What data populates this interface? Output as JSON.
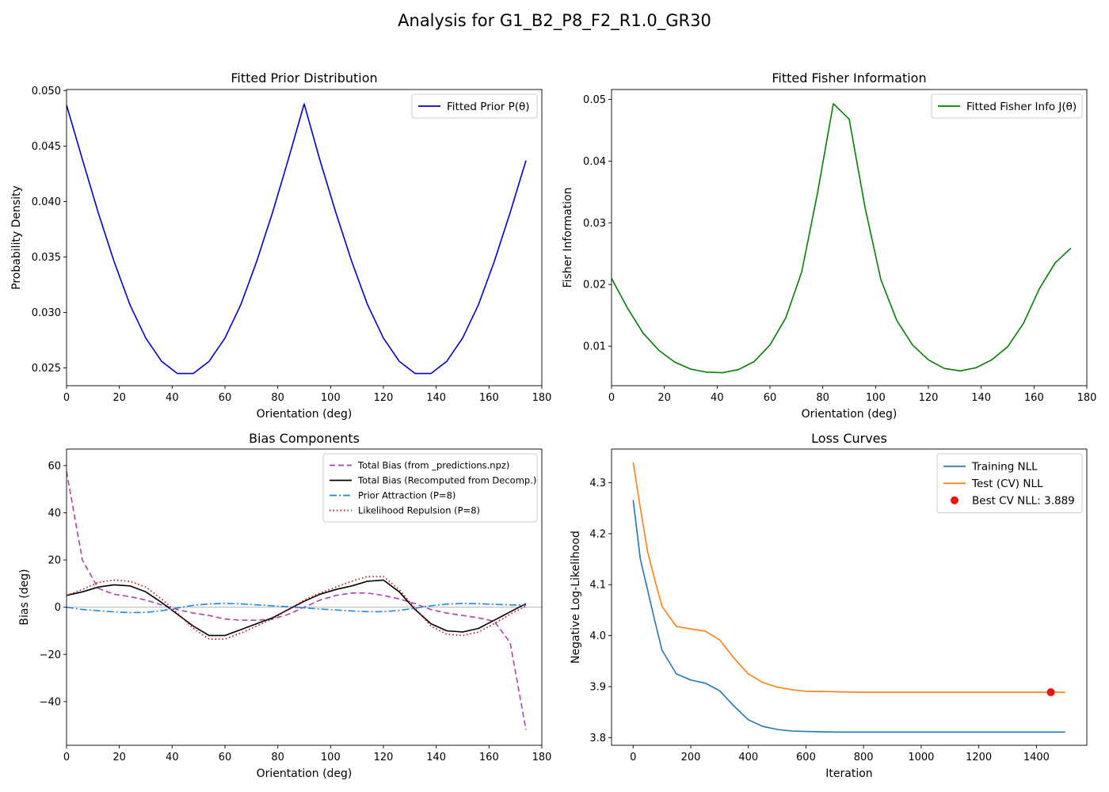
{
  "suptitle": "Analysis for G1_B2_P8_F2_R1.0_GR30",
  "chart_data": [
    {
      "type": "line",
      "title": "Fitted Prior Distribution",
      "xlabel": "Orientation (deg)",
      "ylabel": "Probability Density",
      "xlim": [
        0,
        180
      ],
      "ylim": [
        0.0234,
        0.0501
      ],
      "xticks": [
        0,
        20,
        40,
        60,
        80,
        100,
        120,
        140,
        160,
        180
      ],
      "yticks": [
        0.025,
        0.03,
        0.035,
        0.04,
        0.045,
        0.05
      ],
      "ytick_labels": [
        "0.025",
        "0.030",
        "0.035",
        "0.040",
        "0.045",
        "0.050"
      ],
      "legend": "upper right",
      "grid": false,
      "series": [
        {
          "name": "Fitted Prior P(θ)",
          "color": "#0000cc",
          "style": "solid",
          "x": [
            0,
            6,
            12,
            18,
            24,
            30,
            36,
            42,
            48,
            54,
            60,
            66,
            72,
            78,
            84,
            90,
            96,
            102,
            108,
            114,
            120,
            126,
            132,
            138,
            144,
            150,
            156,
            162,
            168,
            174
          ],
          "y": [
            0.0487,
            0.0438,
            0.039,
            0.0346,
            0.0307,
            0.0277,
            0.0256,
            0.0245,
            0.0245,
            0.0256,
            0.0277,
            0.0307,
            0.0346,
            0.039,
            0.0438,
            0.0488,
            0.0437,
            0.039,
            0.0346,
            0.0307,
            0.0277,
            0.0256,
            0.0245,
            0.0245,
            0.0256,
            0.0277,
            0.0307,
            0.0346,
            0.039,
            0.0437
          ]
        }
      ]
    },
    {
      "type": "line",
      "title": "Fitted Fisher Information",
      "xlabel": "Orientation (deg)",
      "ylabel": "Fisher Information",
      "xlim": [
        0,
        180
      ],
      "ylim": [
        0.0036,
        0.0516
      ],
      "xticks": [
        0,
        20,
        40,
        60,
        80,
        100,
        120,
        140,
        160,
        180
      ],
      "yticks": [
        0.01,
        0.02,
        0.03,
        0.04,
        0.05
      ],
      "ytick_labels": [
        "0.01",
        "0.02",
        "0.03",
        "0.04",
        "0.05"
      ],
      "legend": "upper right",
      "grid": false,
      "series": [
        {
          "name": "Fitted Fisher Info J(θ)",
          "color": "#008000",
          "style": "solid",
          "x": [
            0,
            6,
            12,
            18,
            24,
            30,
            36,
            42,
            48,
            54,
            60,
            66,
            72,
            78,
            84,
            90,
            96,
            102,
            108,
            114,
            120,
            126,
            132,
            138,
            144,
            150,
            156,
            162,
            168,
            174
          ],
          "y": [
            0.021,
            0.0162,
            0.0121,
            0.0093,
            0.0074,
            0.0063,
            0.0058,
            0.0057,
            0.0062,
            0.0075,
            0.0102,
            0.0146,
            0.022,
            0.0348,
            0.0493,
            0.0468,
            0.0325,
            0.0208,
            0.0142,
            0.0102,
            0.0078,
            0.0064,
            0.006,
            0.0065,
            0.0078,
            0.0099,
            0.0137,
            0.0193,
            0.0235,
            0.0259
          ]
        }
      ]
    },
    {
      "type": "line",
      "title": "Bias Components",
      "xlabel": "Orientation (deg)",
      "ylabel": "Bias (deg)",
      "xlim": [
        0,
        180
      ],
      "ylim": [
        -58.5,
        67
      ],
      "xticks": [
        0,
        20,
        40,
        60,
        80,
        100,
        120,
        140,
        160,
        180
      ],
      "yticks": [
        -40,
        -20,
        0,
        20,
        40,
        60
      ],
      "ytick_labels": [
        "−40",
        "−20",
        "0",
        "20",
        "40",
        "60"
      ],
      "zero_line": true,
      "legend": "upper right",
      "grid": false,
      "series": [
        {
          "name": "Total Bias (from _predictions.npz)",
          "color": "#aa44aa",
          "style": "dashed",
          "x": [
            0,
            6,
            12,
            18,
            24,
            30,
            36,
            42,
            48,
            54,
            60,
            66,
            72,
            78,
            84,
            90,
            96,
            102,
            108,
            114,
            120,
            126,
            132,
            138,
            144,
            150,
            156,
            162,
            168,
            174
          ],
          "y": [
            57.5,
            20,
            8,
            5.5,
            4.5,
            3,
            1,
            -1,
            -2.5,
            -3.5,
            -5,
            -5.5,
            -5.5,
            -5,
            -3,
            0,
            3,
            5,
            6,
            6,
            5,
            3.5,
            1.5,
            -1,
            -2.5,
            -3.5,
            -4.5,
            -6,
            -15,
            -52
          ]
        },
        {
          "name": "Total Bias (Recomputed from Decomp.)",
          "color": "#000000",
          "style": "solid",
          "x": [
            0,
            6,
            12,
            18,
            24,
            30,
            36,
            42,
            48,
            54,
            60,
            66,
            72,
            78,
            84,
            90,
            96,
            102,
            108,
            114,
            120,
            126,
            132,
            138,
            144,
            150,
            156,
            162,
            168,
            174
          ],
          "y": [
            5,
            6.5,
            8.5,
            9.5,
            9,
            6.5,
            2,
            -3,
            -8,
            -12,
            -12,
            -9.5,
            -7,
            -4.5,
            -1,
            2.5,
            5.5,
            7.5,
            9,
            11,
            11.5,
            6.5,
            -1,
            -7,
            -10,
            -10.5,
            -9,
            -5.5,
            -2,
            1.5
          ]
        },
        {
          "name": "Prior Attraction (P=8)",
          "color": "#1e88e5",
          "style": "dashdot",
          "x": [
            0,
            6,
            12,
            18,
            24,
            30,
            36,
            42,
            48,
            54,
            60,
            66,
            72,
            78,
            84,
            90,
            96,
            102,
            108,
            114,
            120,
            126,
            132,
            138,
            144,
            150,
            156,
            162,
            168,
            174
          ],
          "y": [
            0,
            -1,
            -1.5,
            -2,
            -2.3,
            -2.2,
            -1.5,
            -0.3,
            0.8,
            1.4,
            1.6,
            1.4,
            1,
            0.6,
            0.2,
            -0.3,
            -0.8,
            -1.2,
            -1.6,
            -1.9,
            -1.9,
            -1.4,
            -0.4,
            0.6,
            1.3,
            1.6,
            1.5,
            1.2,
            1,
            0.8
          ]
        },
        {
          "name": "Likelihood Repulsion (P=8)",
          "color": "#cc0000",
          "style": "dotted",
          "x": [
            0,
            6,
            12,
            18,
            24,
            30,
            36,
            42,
            48,
            54,
            60,
            66,
            72,
            78,
            84,
            90,
            96,
            102,
            108,
            114,
            120,
            126,
            132,
            138,
            144,
            150,
            156,
            162,
            168,
            174
          ],
          "y": [
            5,
            7.5,
            10.5,
            11.5,
            11,
            8.5,
            3.5,
            -2.5,
            -9,
            -13.5,
            -13.5,
            -11,
            -8,
            -5,
            -1,
            3,
            6,
            8.5,
            11,
            13,
            13,
            7.5,
            -0.5,
            -8,
            -11.5,
            -12,
            -10.5,
            -7,
            -3,
            0.5
          ]
        }
      ]
    },
    {
      "type": "line",
      "title": "Loss Curves",
      "xlabel": "Iteration",
      "ylabel": "Negative Log-Likelihood",
      "xlim": [
        -75,
        1575
      ],
      "ylim": [
        3.785,
        4.366
      ],
      "xticks": [
        0,
        200,
        400,
        600,
        800,
        1000,
        1200,
        1400
      ],
      "yticks": [
        3.8,
        3.9,
        4.0,
        4.1,
        4.2,
        4.3
      ],
      "ytick_labels": [
        "3.8",
        "3.9",
        "4.0",
        "4.1",
        "4.2",
        "4.3"
      ],
      "legend": "upper right",
      "grid": false,
      "series": [
        {
          "name": "Training NLL",
          "color": "#1f77b4",
          "style": "solid",
          "x": [
            0,
            25,
            50,
            75,
            100,
            150,
            200,
            250,
            300,
            350,
            400,
            450,
            500,
            550,
            600,
            700,
            800,
            900,
            1000,
            1100,
            1200,
            1300,
            1400,
            1500
          ],
          "y": [
            4.266,
            4.15,
            4.09,
            4.03,
            3.972,
            3.925,
            3.913,
            3.907,
            3.892,
            3.862,
            3.835,
            3.822,
            3.816,
            3.813,
            3.812,
            3.811,
            3.811,
            3.811,
            3.811,
            3.811,
            3.811,
            3.811,
            3.811,
            3.811
          ]
        },
        {
          "name": "Test (CV) NLL",
          "color": "#ff7f0e",
          "style": "solid",
          "x": [
            0,
            25,
            50,
            75,
            100,
            150,
            200,
            250,
            300,
            350,
            400,
            450,
            500,
            550,
            600,
            700,
            800,
            900,
            1000,
            1100,
            1200,
            1300,
            1400,
            1500
          ],
          "y": [
            4.34,
            4.25,
            4.165,
            4.11,
            4.058,
            4.018,
            4.013,
            4.009,
            3.992,
            3.956,
            3.925,
            3.908,
            3.899,
            3.894,
            3.891,
            3.89,
            3.889,
            3.889,
            3.889,
            3.889,
            3.889,
            3.889,
            3.889,
            3.889
          ]
        }
      ],
      "points": [
        {
          "name": "Best CV NLL: 3.889",
          "color": "#ee1111",
          "x": 1450,
          "y": 3.889
        }
      ]
    }
  ]
}
